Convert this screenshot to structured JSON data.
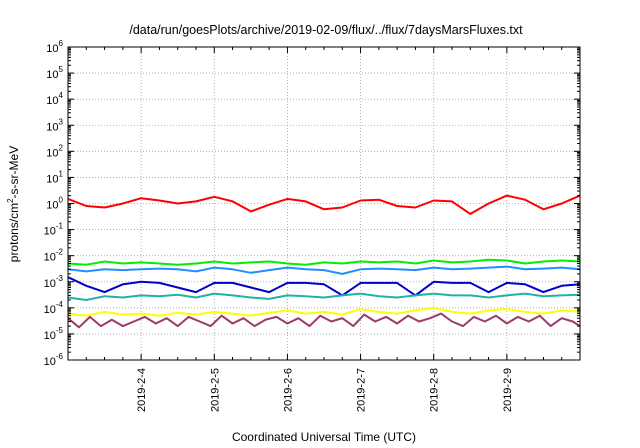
{
  "chart_data": {
    "type": "line",
    "title": "/data/run/goesPlots/archive/2019-02-09/flux/../flux/7daysMarsFluxes.txt",
    "xlabel": "Coordinated Universal Time (UTC)",
    "ylabel": "protons/cm²-s-sr-MeV",
    "ylabel_parts": {
      "pre": "protons/cm",
      "sup": "2",
      "post": "-s-sr-MeV"
    },
    "yscale": "log",
    "ylim": [
      1e-06,
      1000000.0
    ],
    "y_tick_exponents": [
      "-6",
      "-5",
      "-4",
      "-3",
      "-2",
      "-1",
      "0",
      "1",
      "2",
      "3",
      "4",
      "5",
      "6"
    ],
    "y_tick_base": "10",
    "xlim": [
      "2019-02-03T00:00",
      "2019-02-10T00:00"
    ],
    "x_ticks": [
      "2019-2-4",
      "2019-2-5",
      "2019-2-6",
      "2019-2-7",
      "2019-2-8",
      "2019-2-9"
    ],
    "grid": true,
    "series": [
      {
        "color": "#ff0000",
        "x": [
          3.0,
          3.25,
          3.5,
          3.75,
          4.0,
          4.25,
          4.5,
          4.75,
          5.0,
          5.25,
          5.5,
          5.75,
          6.0,
          6.25,
          6.5,
          6.75,
          7.0,
          7.25,
          7.5,
          7.75,
          8.0,
          8.25,
          8.5,
          8.75,
          9.0,
          9.25,
          9.5,
          9.75,
          10.0
        ],
        "values": [
          1.5,
          0.8,
          0.7,
          1.0,
          1.6,
          1.3,
          1.0,
          1.2,
          1.8,
          1.2,
          0.5,
          0.9,
          1.5,
          1.2,
          0.6,
          0.7,
          1.3,
          1.4,
          0.8,
          0.7,
          1.3,
          1.2,
          0.4,
          1.0,
          2.0,
          1.4,
          0.6,
          1.0,
          2.0
        ]
      },
      {
        "color": "#00ee00",
        "x": [
          3.0,
          3.25,
          3.5,
          3.75,
          4.0,
          4.25,
          4.5,
          4.75,
          5.0,
          5.25,
          5.5,
          5.75,
          6.0,
          6.25,
          6.5,
          6.75,
          7.0,
          7.25,
          7.5,
          7.75,
          8.0,
          8.25,
          8.5,
          8.75,
          9.0,
          9.25,
          9.5,
          9.75,
          10.0
        ],
        "values": [
          0.005,
          0.0045,
          0.006,
          0.005,
          0.0055,
          0.005,
          0.0045,
          0.005,
          0.006,
          0.005,
          0.0055,
          0.006,
          0.005,
          0.0045,
          0.0055,
          0.005,
          0.006,
          0.0055,
          0.006,
          0.005,
          0.0065,
          0.0055,
          0.006,
          0.007,
          0.0065,
          0.005,
          0.006,
          0.0065,
          0.006
        ]
      },
      {
        "color": "#1e90ff",
        "x": [
          3.0,
          3.25,
          3.5,
          3.75,
          4.0,
          4.25,
          4.5,
          4.75,
          5.0,
          5.25,
          5.5,
          5.75,
          6.0,
          6.25,
          6.5,
          6.75,
          7.0,
          7.25,
          7.5,
          7.75,
          8.0,
          8.25,
          8.5,
          8.75,
          9.0,
          9.25,
          9.5,
          9.75,
          10.0
        ],
        "values": [
          0.003,
          0.0025,
          0.003,
          0.0028,
          0.003,
          0.0032,
          0.003,
          0.0025,
          0.0035,
          0.003,
          0.0022,
          0.0028,
          0.0035,
          0.003,
          0.0028,
          0.002,
          0.003,
          0.0032,
          0.003,
          0.0028,
          0.0035,
          0.003,
          0.0032,
          0.0035,
          0.0038,
          0.003,
          0.0032,
          0.0035,
          0.003
        ]
      },
      {
        "color": "#0000cd",
        "x": [
          3.0,
          3.25,
          3.5,
          3.75,
          4.0,
          4.25,
          4.5,
          4.75,
          5.0,
          5.25,
          5.5,
          5.75,
          6.0,
          6.25,
          6.5,
          6.75,
          7.0,
          7.25,
          7.5,
          7.75,
          8.0,
          8.25,
          8.5,
          8.75,
          9.0,
          9.25,
          9.5,
          9.75,
          10.0
        ],
        "values": [
          0.0015,
          0.0007,
          0.0004,
          0.0008,
          0.001,
          0.0009,
          0.0006,
          0.0004,
          0.0009,
          0.0009,
          0.0006,
          0.0004,
          0.0009,
          0.0009,
          0.0008,
          0.0003,
          0.0009,
          0.0009,
          0.0009,
          0.0003,
          0.001,
          0.0009,
          0.0009,
          0.0004,
          0.0009,
          0.0008,
          0.0004,
          0.0007,
          0.0008
        ]
      },
      {
        "color": "#20b2aa",
        "x": [
          3.0,
          3.25,
          3.5,
          3.75,
          4.0,
          4.25,
          4.5,
          4.75,
          5.0,
          5.25,
          5.5,
          5.75,
          6.0,
          6.25,
          6.5,
          6.75,
          7.0,
          7.25,
          7.5,
          7.75,
          8.0,
          8.25,
          8.5,
          8.75,
          9.0,
          9.25,
          9.5,
          9.75,
          10.0
        ],
        "values": [
          0.00025,
          0.0002,
          0.00028,
          0.00025,
          0.0003,
          0.00028,
          0.00032,
          0.00025,
          0.00035,
          0.0003,
          0.00025,
          0.00022,
          0.0003,
          0.00028,
          0.00025,
          0.0003,
          0.00035,
          0.00028,
          0.00025,
          0.0003,
          0.00035,
          0.0003,
          0.0003,
          0.00025,
          0.0003,
          0.00035,
          0.00028,
          0.0003,
          0.00032
        ]
      },
      {
        "color": "#ffff00",
        "x": [
          3.0,
          3.25,
          3.5,
          3.75,
          4.0,
          4.25,
          4.5,
          4.75,
          5.0,
          5.25,
          5.5,
          5.75,
          6.0,
          6.25,
          6.5,
          6.75,
          7.0,
          7.25,
          7.5,
          7.75,
          8.0,
          8.25,
          8.5,
          8.75,
          9.0,
          9.25,
          9.5,
          9.75,
          10.0
        ],
        "values": [
          6e-05,
          5e-05,
          7e-05,
          5.5e-05,
          6e-05,
          5e-05,
          6.5e-05,
          5.5e-05,
          7e-05,
          6e-05,
          5e-05,
          6.5e-05,
          8e-05,
          6e-05,
          7e-05,
          5.5e-05,
          9e-05,
          7e-05,
          6e-05,
          8e-05,
          0.0001,
          7e-05,
          6e-05,
          8e-05,
          9e-05,
          7e-05,
          6e-05,
          8e-05,
          7e-05
        ]
      },
      {
        "color": "#9b3a6b",
        "x": [
          3.0,
          3.15,
          3.3,
          3.45,
          3.6,
          3.75,
          3.9,
          4.05,
          4.2,
          4.35,
          4.5,
          4.65,
          4.8,
          4.95,
          5.1,
          5.25,
          5.4,
          5.55,
          5.7,
          5.85,
          6.0,
          6.15,
          6.3,
          6.45,
          6.6,
          6.75,
          6.9,
          7.05,
          7.2,
          7.35,
          7.5,
          7.65,
          7.8,
          7.95,
          8.1,
          8.25,
          8.4,
          8.55,
          8.7,
          8.85,
          9.0,
          9.15,
          9.3,
          9.45,
          9.6,
          9.75,
          9.9,
          10.0
        ],
        "values": [
          4e-05,
          1.8e-05,
          4.5e-05,
          2e-05,
          3.5e-05,
          2e-05,
          3e-05,
          4.5e-05,
          2.5e-05,
          4e-05,
          2e-05,
          4.5e-05,
          3e-05,
          2e-05,
          5e-05,
          2.5e-05,
          4e-05,
          2e-05,
          3.5e-05,
          4.5e-05,
          2.5e-05,
          4e-05,
          2e-05,
          5e-05,
          3e-05,
          4e-05,
          2e-05,
          5.5e-05,
          3e-05,
          4.5e-05,
          2.5e-05,
          5e-05,
          3e-05,
          4e-05,
          6e-05,
          3e-05,
          2e-05,
          4.5e-05,
          3e-05,
          5e-05,
          2.5e-05,
          4.5e-05,
          3e-05,
          5e-05,
          2e-05,
          4e-05,
          3e-05,
          2e-05
        ]
      }
    ]
  }
}
